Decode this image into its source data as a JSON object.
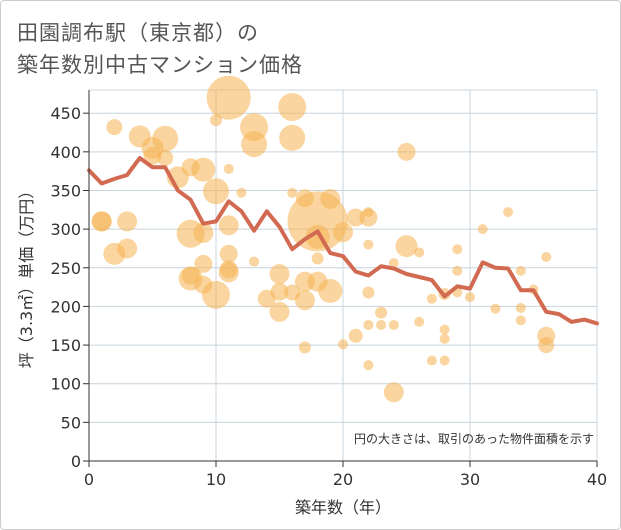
{
  "title_line1": "田園調布駅（東京都）の",
  "title_line2": "築年数別中古マンション価格",
  "note": "円の大きさは、取引のあった物件面積を示す",
  "colors": {
    "bubble": "#f5b350",
    "line": "#d26a52",
    "grid": "#c8d4dc",
    "axis": "#333333"
  },
  "chart_data": {
    "type": "scatter",
    "xlabel": "築年数（年）",
    "ylabel": "坪（3.3㎡）単価（万円）",
    "xlim": [
      0,
      40
    ],
    "ylim": [
      0,
      480
    ],
    "xticks": [
      0,
      10,
      20,
      30,
      40
    ],
    "yticks": [
      0,
      50,
      100,
      150,
      200,
      250,
      300,
      350,
      400,
      450
    ],
    "bubbles": [
      [
        1,
        310,
        10
      ],
      [
        1,
        310,
        10
      ],
      [
        2,
        432,
        8
      ],
      [
        2,
        268,
        11
      ],
      [
        3,
        310,
        10
      ],
      [
        3,
        275,
        10
      ],
      [
        4,
        420,
        11
      ],
      [
        5,
        405,
        11
      ],
      [
        5,
        395,
        9
      ],
      [
        6,
        417,
        13
      ],
      [
        6,
        392,
        8
      ],
      [
        7,
        367,
        11
      ],
      [
        8,
        380,
        9
      ],
      [
        8,
        294,
        14
      ],
      [
        8,
        240,
        9
      ],
      [
        8,
        236,
        12
      ],
      [
        9,
        377,
        12
      ],
      [
        9,
        295,
        10
      ],
      [
        9,
        255,
        9
      ],
      [
        9,
        228,
        9
      ],
      [
        10,
        441,
        6
      ],
      [
        10,
        349,
        13
      ],
      [
        10,
        215,
        14
      ],
      [
        11,
        470,
        22
      ],
      [
        11,
        378,
        5
      ],
      [
        11,
        305,
        10
      ],
      [
        11,
        268,
        9
      ],
      [
        11,
        248,
        9
      ],
      [
        11,
        244,
        10
      ],
      [
        12,
        347,
        5
      ],
      [
        13,
        432,
        14
      ],
      [
        13,
        410,
        13
      ],
      [
        13,
        258,
        5
      ],
      [
        14,
        210,
        9
      ],
      [
        15,
        242,
        10
      ],
      [
        15,
        219,
        9
      ],
      [
        15,
        193,
        10
      ],
      [
        16,
        458,
        14
      ],
      [
        16,
        418,
        13
      ],
      [
        16,
        347,
        5
      ],
      [
        16,
        218,
        8
      ],
      [
        17,
        340,
        9
      ],
      [
        17,
        232,
        10
      ],
      [
        17,
        208,
        10
      ],
      [
        17,
        147,
        6
      ],
      [
        18,
        310,
        30
      ],
      [
        18,
        290,
        12
      ],
      [
        18,
        262,
        6
      ],
      [
        18,
        232,
        10
      ],
      [
        19,
        339,
        10
      ],
      [
        19,
        220,
        12
      ],
      [
        20,
        296,
        10
      ],
      [
        20,
        151,
        5
      ],
      [
        21,
        315,
        9
      ],
      [
        21,
        162,
        7
      ],
      [
        22,
        322,
        5
      ],
      [
        22,
        315,
        9
      ],
      [
        22,
        280,
        5
      ],
      [
        22,
        218,
        6
      ],
      [
        22,
        176,
        5
      ],
      [
        22,
        124,
        5
      ],
      [
        23,
        192,
        6
      ],
      [
        23,
        176,
        5
      ],
      [
        24,
        256,
        5
      ],
      [
        24,
        176,
        5
      ],
      [
        24,
        89,
        10
      ],
      [
        25,
        400,
        9
      ],
      [
        25,
        278,
        11
      ],
      [
        26,
        270,
        5
      ],
      [
        26,
        180,
        5
      ],
      [
        27,
        210,
        5
      ],
      [
        27,
        130,
        5
      ],
      [
        28,
        216,
        6
      ],
      [
        28,
        170,
        5
      ],
      [
        28,
        158,
        5
      ],
      [
        28,
        130,
        5
      ],
      [
        29,
        274,
        5
      ],
      [
        29,
        246,
        5
      ],
      [
        29,
        218,
        5
      ],
      [
        30,
        212,
        5
      ],
      [
        31,
        300,
        5
      ],
      [
        32,
        197,
        5
      ],
      [
        33,
        322,
        5
      ],
      [
        34,
        246,
        5
      ],
      [
        34,
        198,
        5
      ],
      [
        34,
        182,
        5
      ],
      [
        35,
        222,
        5
      ],
      [
        36,
        264,
        5
      ],
      [
        36,
        162,
        9
      ],
      [
        36,
        150,
        8
      ]
    ],
    "average_line": [
      [
        0,
        376
      ],
      [
        1,
        359
      ],
      [
        2,
        365
      ],
      [
        3,
        370
      ],
      [
        4,
        392
      ],
      [
        5,
        380
      ],
      [
        6,
        380
      ],
      [
        7,
        350
      ],
      [
        8,
        338
      ],
      [
        9,
        307
      ],
      [
        10,
        310
      ],
      [
        11,
        336
      ],
      [
        12,
        323
      ],
      [
        13,
        298
      ],
      [
        14,
        323
      ],
      [
        15,
        303
      ],
      [
        16,
        274
      ],
      [
        17,
        287
      ],
      [
        18,
        297
      ],
      [
        19,
        269
      ],
      [
        20,
        265
      ],
      [
        21,
        245
      ],
      [
        22,
        240
      ],
      [
        23,
        252
      ],
      [
        24,
        249
      ],
      [
        25,
        242
      ],
      [
        26,
        238
      ],
      [
        27,
        234
      ],
      [
        28,
        213
      ],
      [
        29,
        226
      ],
      [
        30,
        223
      ],
      [
        31,
        257
      ],
      [
        32,
        250
      ],
      [
        33,
        249
      ],
      [
        34,
        221
      ],
      [
        35,
        221
      ],
      [
        36,
        193
      ],
      [
        37,
        190
      ],
      [
        38,
        180
      ],
      [
        39,
        183
      ],
      [
        40,
        178
      ]
    ]
  }
}
